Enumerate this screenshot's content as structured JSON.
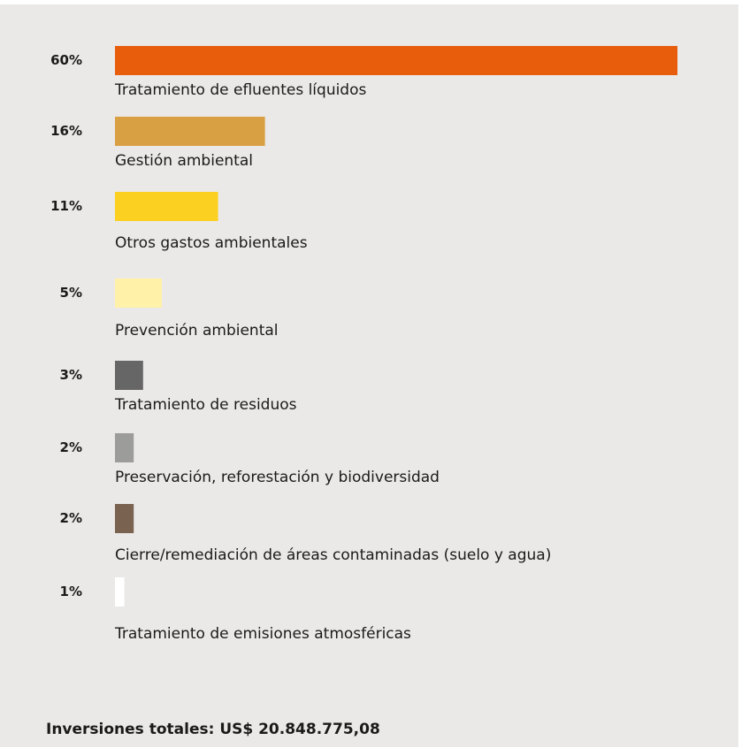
{
  "chart_data": {
    "type": "bar",
    "orientation": "horizontal",
    "categories": [
      "Tratamiento de efluentes líquidos",
      "Gestión ambiental",
      "Otros gastos ambientales",
      "Prevención ambiental",
      "Tratamiento de residuos",
      "Preservación, reforestación y biodiversidad",
      "Cierre/remediación de áreas contaminadas (suelo y agua)",
      "Tratamiento de emisiones atmosféricas"
    ],
    "values": [
      60,
      16,
      11,
      5,
      3,
      2,
      2,
      1
    ],
    "value_labels": [
      "60%",
      "16%",
      "11%",
      "5%",
      "3%",
      "2%",
      "2%",
      "1%"
    ],
    "colors": [
      "#e85d0c",
      "#d9a043",
      "#fcd021",
      "#fff1a8",
      "#666666",
      "#9c9c9b",
      "#7a6250",
      "#ffffff"
    ],
    "footer": "Inversiones totales: US$ 20.848.775,08"
  }
}
